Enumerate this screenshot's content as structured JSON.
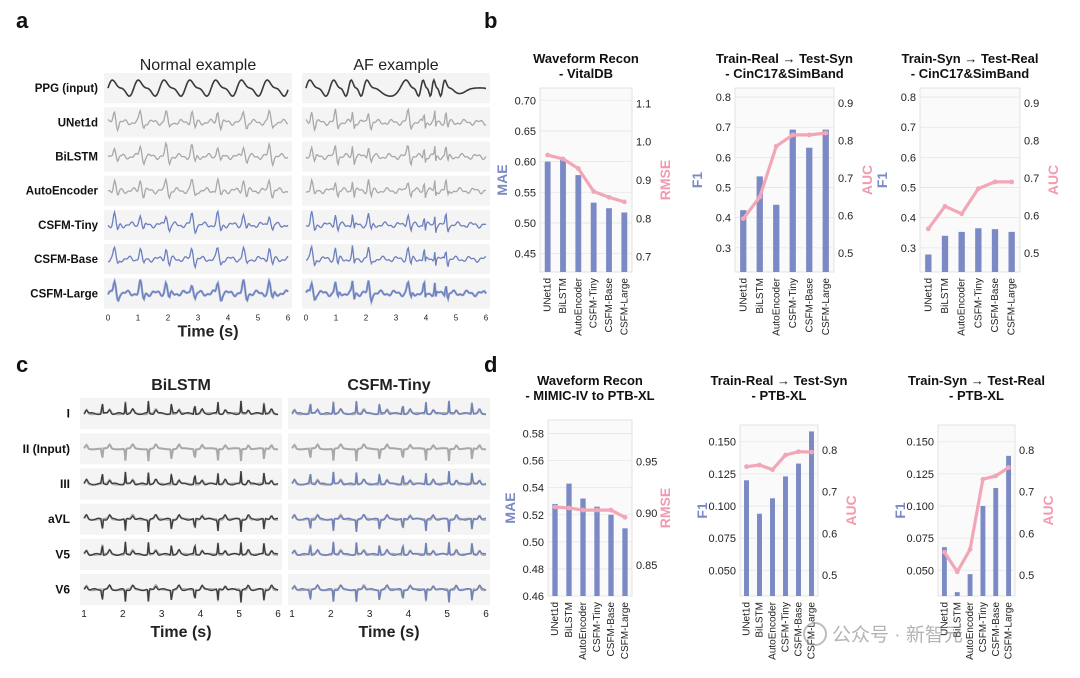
{
  "colors": {
    "bar": "#7b8ac4",
    "auc_line": "#f2a7b7",
    "auc_label": "#f19ab0",
    "mae_label": "#7b8ac4",
    "trace_dark": "#3a3a3a",
    "trace_gray": "#a8a8a8",
    "trace_blue": "#6c7fbf",
    "panel_bg": "#f4f4f4"
  },
  "panels": {
    "a": {
      "label": "a"
    },
    "b": {
      "label": "b"
    },
    "c": {
      "label": "c"
    },
    "d": {
      "label": "d"
    }
  },
  "watermark": "公众号 · 新智元",
  "panel_a": {
    "col_titles": [
      "Normal example",
      "AF example"
    ],
    "rows": [
      {
        "label": "PPG (input)",
        "style": "dark"
      },
      {
        "label": "UNet1d",
        "style": "gray"
      },
      {
        "label": "BiLSTM",
        "style": "gray"
      },
      {
        "label": "AutoEncoder",
        "style": "gray"
      },
      {
        "label": "CSFM-Tiny",
        "style": "blue"
      },
      {
        "label": "CSFM-Base",
        "style": "blue"
      },
      {
        "label": "CSFM-Large",
        "style": "blue"
      }
    ],
    "x_ticks": [
      "0",
      "1",
      "2",
      "3",
      "4",
      "5",
      "6"
    ],
    "xlabel": "Time (s)"
  },
  "panel_c": {
    "col_titles": [
      "BiLSTM",
      "CSFM-Tiny"
    ],
    "rows": [
      "I",
      "II (Input)",
      "III",
      "aVL",
      "V5",
      "V6"
    ],
    "x_ticks": [
      "1",
      "2",
      "3",
      "4",
      "5",
      "6"
    ],
    "xlabel": "Time (s)"
  },
  "chart_data": [
    {
      "type": "bar",
      "id": "b1",
      "title": "Waveform Recon\n- VitalDB",
      "categories": [
        "UNet1d",
        "BiLSTM",
        "AutoEncoder",
        "CSFM-Tiny",
        "CSFM-Base",
        "CSFM-Large"
      ],
      "ylabel": "MAE",
      "ylim": [
        0.42,
        0.72
      ],
      "yticks": [
        0.45,
        0.5,
        0.55,
        0.6,
        0.65,
        0.7
      ],
      "ytick_labels": [
        "0.45",
        "0.50",
        "0.55",
        "0.60",
        "0.65",
        "0.70"
      ],
      "series": [
        {
          "name": "MAE",
          "type": "bar",
          "values": [
            0.6,
            0.605,
            0.578,
            0.533,
            0.524,
            0.517
          ]
        }
      ],
      "y2label": "RMSE",
      "y2lim": [
        0.66,
        1.14
      ],
      "y2ticks": [
        0.7,
        0.8,
        0.9,
        1.0,
        1.1
      ],
      "y2tick_labels": [
        "0.7",
        "0.8",
        "0.9",
        "1.0",
        "1.1"
      ],
      "series2": [
        {
          "name": "RMSE",
          "type": "line",
          "values": [
            0.965,
            0.955,
            0.93,
            0.87,
            0.855,
            0.843
          ]
        }
      ]
    },
    {
      "type": "bar",
      "id": "b2",
      "title": "Train-Real → Test-Syn\n- CinC17&SimBand",
      "categories": [
        "UNet1d",
        "BiLSTM",
        "AutoEncoder",
        "CSFM-Tiny",
        "CSFM-Base",
        "CSFM-Large"
      ],
      "ylabel": "F1",
      "ylim": [
        0.22,
        0.83
      ],
      "yticks": [
        0.3,
        0.4,
        0.5,
        0.6,
        0.7,
        0.8
      ],
      "ytick_labels": [
        "0.3",
        "0.4",
        "0.5",
        "0.6",
        "0.7",
        "0.8"
      ],
      "series": [
        {
          "name": "F1",
          "type": "bar",
          "values": [
            0.425,
            0.537,
            0.443,
            0.692,
            0.632,
            0.692
          ]
        }
      ],
      "y2label": "AUC",
      "y2lim": [
        0.45,
        0.94
      ],
      "y2ticks": [
        0.5,
        0.6,
        0.7,
        0.8,
        0.9
      ],
      "y2tick_labels": [
        "0.5",
        "0.6",
        "0.7",
        "0.8",
        "0.9"
      ],
      "series2": [
        {
          "name": "AUC",
          "type": "line",
          "values": [
            0.592,
            0.65,
            0.785,
            0.815,
            0.815,
            0.82
          ]
        }
      ]
    },
    {
      "type": "bar",
      "id": "b3",
      "title": "Train-Syn → Test-Real\n- CinC17&SimBand",
      "categories": [
        "UNet1d",
        "BiLSTM",
        "AutoEncoder",
        "CSFM-Tiny",
        "CSFM-Base",
        "CSFM-Large"
      ],
      "ylabel": "F1",
      "ylim": [
        0.22,
        0.83
      ],
      "yticks": [
        0.3,
        0.4,
        0.5,
        0.6,
        0.7,
        0.8
      ],
      "ytick_labels": [
        "0.3",
        "0.4",
        "0.5",
        "0.6",
        "0.7",
        "0.8"
      ],
      "series": [
        {
          "name": "F1",
          "type": "bar",
          "values": [
            0.278,
            0.34,
            0.353,
            0.365,
            0.362,
            0.353
          ]
        }
      ],
      "y2label": "AUC",
      "y2lim": [
        0.45,
        0.94
      ],
      "y2ticks": [
        0.5,
        0.6,
        0.7,
        0.8,
        0.9
      ],
      "y2tick_labels": [
        "0.5",
        "0.6",
        "0.7",
        "0.8",
        "0.9"
      ],
      "series2": [
        {
          "name": "AUC",
          "type": "line",
          "values": [
            0.565,
            0.625,
            0.605,
            0.672,
            0.69,
            0.69
          ]
        }
      ]
    },
    {
      "type": "bar",
      "id": "d1",
      "title": "Waveform Recon\n- MIMIC-IV to PTB-XL",
      "categories": [
        "UNet1d",
        "BiLSTM",
        "AutoEncoder",
        "CSFM-Tiny",
        "CSFM-Base",
        "CSFM-Large"
      ],
      "ylabel": "MAE",
      "ylim": [
        0.46,
        0.59
      ],
      "yticks": [
        0.46,
        0.48,
        0.5,
        0.52,
        0.54,
        0.56,
        0.58
      ],
      "ytick_labels": [
        "0.46",
        "0.48",
        "0.50",
        "0.52",
        "0.54",
        "0.56",
        "0.58"
      ],
      "series": [
        {
          "name": "MAE",
          "type": "bar",
          "values": [
            0.528,
            0.543,
            0.532,
            0.526,
            0.52,
            0.51
          ]
        }
      ],
      "y2label": "RMSE",
      "y2lim": [
        0.82,
        0.99
      ],
      "y2ticks": [
        0.85,
        0.9,
        0.95
      ],
      "y2tick_labels": [
        "0.85",
        "0.90",
        "0.95"
      ],
      "series2": [
        {
          "name": "RMSE",
          "type": "line",
          "values": [
            0.906,
            0.905,
            0.903,
            0.903,
            0.903,
            0.896
          ]
        }
      ]
    },
    {
      "type": "bar",
      "id": "d2",
      "title": "Train-Real → Test-Syn\n- PTB-XL",
      "categories": [
        "UNet1d",
        "BiLSTM",
        "AutoEncoder",
        "CSFM-Tiny",
        "CSFM-Base",
        "CSFM-Large"
      ],
      "ylabel": "F1",
      "ylim": [
        0.03,
        0.163
      ],
      "yticks": [
        0.05,
        0.075,
        0.1,
        0.125,
        0.15
      ],
      "ytick_labels": [
        "0.050",
        "0.075",
        "0.100",
        "0.125",
        "0.150"
      ],
      "series": [
        {
          "name": "F1",
          "type": "bar",
          "values": [
            0.12,
            0.094,
            0.106,
            0.123,
            0.133,
            0.158
          ]
        }
      ],
      "y2label": "AUC",
      "y2lim": [
        0.45,
        0.86
      ],
      "y2ticks": [
        0.5,
        0.6,
        0.7,
        0.8
      ],
      "y2tick_labels": [
        "0.5",
        "0.6",
        "0.7",
        "0.8"
      ],
      "series2": [
        {
          "name": "AUC",
          "type": "line",
          "values": [
            0.76,
            0.764,
            0.753,
            0.788,
            0.796,
            0.795
          ]
        }
      ]
    },
    {
      "type": "bar",
      "id": "d3",
      "title": "Train-Syn → Test-Real\n- PTB-XL",
      "categories": [
        "UNet1d",
        "BiLSTM",
        "AutoEncoder",
        "CSFM-Tiny",
        "CSFM-Base",
        "CSFM-Large"
      ],
      "ylabel": "F1",
      "ylim": [
        0.03,
        0.163
      ],
      "yticks": [
        0.05,
        0.075,
        0.1,
        0.125,
        0.15
      ],
      "ytick_labels": [
        "0.050",
        "0.075",
        "0.100",
        "0.125",
        "0.150"
      ],
      "series": [
        {
          "name": "F1",
          "type": "bar",
          "values": [
            0.068,
            0.033,
            0.047,
            0.1,
            0.114,
            0.139
          ]
        }
      ],
      "y2label": "AUC",
      "y2lim": [
        0.45,
        0.86
      ],
      "y2ticks": [
        0.5,
        0.6,
        0.7,
        0.8
      ],
      "y2tick_labels": [
        "0.5",
        "0.6",
        "0.7",
        "0.8"
      ],
      "series2": [
        {
          "name": "AUC",
          "type": "line",
          "values": [
            0.555,
            0.508,
            0.562,
            0.73,
            0.738,
            0.758
          ]
        }
      ]
    }
  ]
}
